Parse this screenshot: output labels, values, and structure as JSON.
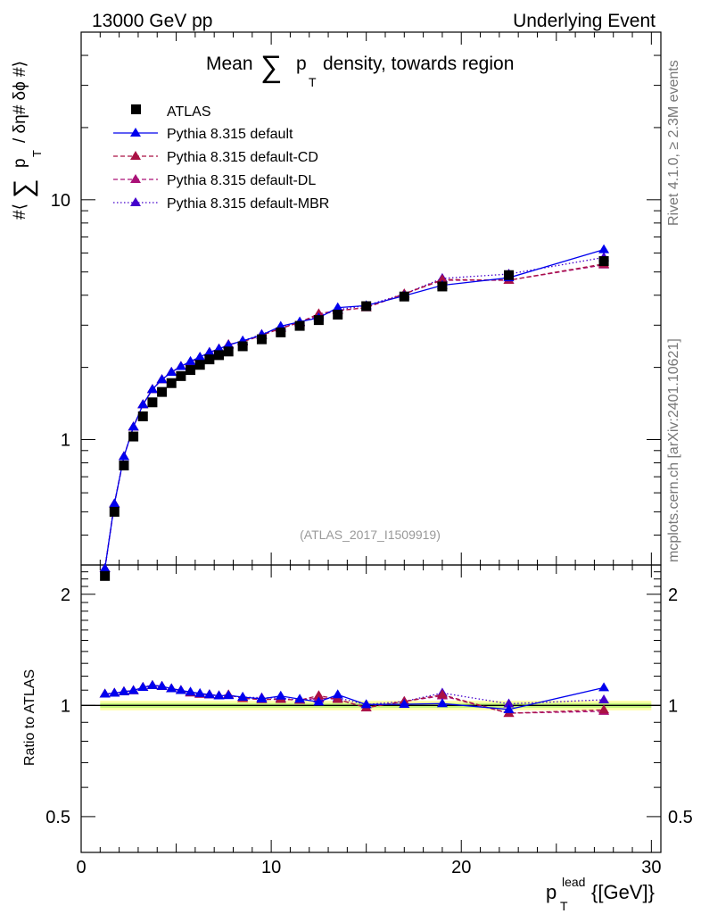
{
  "header": {
    "left": "13000 GeV pp",
    "right": "Underlying Event"
  },
  "side_labels": {
    "rivet": "Rivet 4.1.0, ≥ 2.3M events",
    "mcplots": "mcplots.cern.ch [arXiv:2401.10621]"
  },
  "chart_data": {
    "type": "line",
    "title": "Mean ∑ pT density, towards region",
    "title_parts": {
      "pre": "Mean",
      "sum": "∑",
      "p": "p",
      "sub": "T",
      "post": "density, towards region"
    },
    "analysis_id": "(ATLAS_2017_I1509919)",
    "ylabel_parts": {
      "pre": "#⟨",
      "sum": "∑",
      "p": "p",
      "sub": "T",
      "post": "/ δη# δϕ #⟩"
    },
    "ratio_ylabel": "Ratio to ATLAS",
    "xlabel_parts": {
      "p": "p",
      "sup": "lead",
      "sub": "T",
      "unit": "{[GeV]}"
    },
    "xlim": [
      0,
      30.5
    ],
    "ylim": [
      0.3,
      50
    ],
    "yscale": "log",
    "ratio_ylim": [
      0.4,
      2.4
    ],
    "x_ticks": [
      "0",
      "10",
      "20",
      "30"
    ],
    "y_ticks": [
      "1",
      "10"
    ],
    "ratio_y_ticks": [
      "0.5",
      "1",
      "2"
    ],
    "x": [
      1.25,
      1.75,
      2.25,
      2.75,
      3.25,
      3.75,
      4.25,
      4.75,
      5.25,
      5.75,
      6.25,
      6.75,
      7.25,
      7.75,
      8.5,
      9.5,
      10.5,
      11.5,
      12.5,
      13.5,
      15,
      17,
      19,
      22.5,
      27.5
    ],
    "legend": [
      "ATLAS",
      "Pythia 8.315 default",
      "Pythia 8.315 default-CD",
      "Pythia 8.315 default-DL",
      "Pythia 8.315 default-MBR"
    ],
    "series": [
      {
        "name": "ATLAS",
        "color": "#000000",
        "style": "markers",
        "values": [
          0.27,
          0.5,
          0.78,
          1.03,
          1.25,
          1.43,
          1.58,
          1.72,
          1.84,
          1.95,
          2.05,
          2.16,
          2.25,
          2.33,
          2.45,
          2.62,
          2.8,
          2.98,
          3.15,
          3.32,
          3.6,
          3.95,
          4.35,
          4.85,
          5.55
        ]
      },
      {
        "name": "Pythia 8.315 default",
        "color": "#0000ee",
        "style": "solid",
        "values": [
          0.29,
          0.54,
          0.85,
          1.13,
          1.4,
          1.62,
          1.78,
          1.91,
          2.02,
          2.12,
          2.21,
          2.31,
          2.39,
          2.48,
          2.58,
          2.73,
          2.97,
          3.1,
          3.22,
          3.55,
          3.62,
          3.98,
          4.4,
          4.73,
          6.2
        ]
      },
      {
        "name": "Pythia 8.315 default-CD",
        "color": "#aa1144",
        "style": "dashed",
        "values": [
          0.29,
          0.54,
          0.85,
          1.13,
          1.4,
          1.62,
          1.78,
          1.91,
          2.02,
          2.11,
          2.2,
          2.31,
          2.39,
          2.49,
          2.56,
          2.72,
          2.91,
          3.08,
          3.35,
          3.45,
          3.55,
          4.05,
          4.65,
          4.62,
          5.4
        ]
      },
      {
        "name": "Pythia 8.315 default-DL",
        "color": "#aa1177",
        "style": "dashed",
        "values": [
          0.29,
          0.54,
          0.85,
          1.13,
          1.4,
          1.62,
          1.78,
          1.91,
          2.02,
          2.11,
          2.2,
          2.31,
          2.39,
          2.49,
          2.56,
          2.72,
          2.91,
          3.08,
          3.3,
          3.45,
          3.55,
          4.05,
          4.62,
          4.62,
          5.35
        ]
      },
      {
        "name": "Pythia 8.315 default-MBR",
        "color": "#4400cc",
        "style": "dotted",
        "values": [
          0.29,
          0.54,
          0.85,
          1.13,
          1.4,
          1.62,
          1.78,
          1.91,
          2.02,
          2.11,
          2.2,
          2.31,
          2.39,
          2.48,
          2.58,
          2.75,
          2.93,
          3.08,
          3.28,
          3.48,
          3.62,
          4.05,
          4.7,
          4.9,
          5.75
        ]
      }
    ]
  }
}
